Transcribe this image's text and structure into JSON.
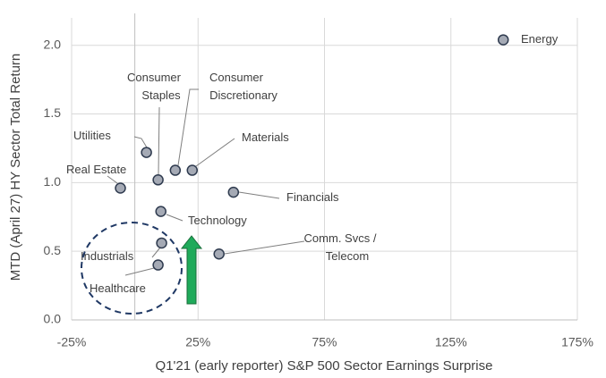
{
  "chart_data": {
    "type": "scatter",
    "x_label": "Q1'21 (early reporter) S&P 500 Sector Earnings Surprise",
    "y_label": "MTD (April 27) HY Sector Total Return",
    "xlim": [
      -25,
      175
    ],
    "xticks": [
      {
        "value": -25,
        "label": "-25%"
      },
      {
        "value": 25,
        "label": "25%"
      },
      {
        "value": 75,
        "label": "75%"
      },
      {
        "value": 125,
        "label": "125%"
      },
      {
        "value": 175,
        "label": "175%"
      }
    ],
    "ylim": [
      0,
      2.2
    ],
    "yticks": [
      {
        "value": 0,
        "label": "0.0"
      },
      {
        "value": 0.5,
        "label": "0.5"
      },
      {
        "value": 1,
        "label": "1.0"
      },
      {
        "value": 1.5,
        "label": "1.5"
      },
      {
        "value": 2,
        "label": "2.0"
      }
    ],
    "grid": true,
    "color": "#a5aab5",
    "points": [
      {
        "label": [
          "Energy"
        ],
        "x": 145.7,
        "y": 2.04
      },
      {
        "label": [
          "Utilities"
        ],
        "x": 4.6,
        "y": 1.22
      },
      {
        "label": [
          "Real Estate"
        ],
        "x": -5.7,
        "y": 0.96
      },
      {
        "label": [
          "Consumer",
          "Staples"
        ],
        "x": 9.2,
        "y": 1.02
      },
      {
        "label": [
          "Consumer",
          "Discretionary"
        ],
        "x": 16.0,
        "y": 1.09
      },
      {
        "label": [
          "Materials"
        ],
        "x": 22.7,
        "y": 1.09
      },
      {
        "label": [
          "Financials"
        ],
        "x": 39.0,
        "y": 0.93
      },
      {
        "label": [
          "Technology"
        ],
        "x": 10.3,
        "y": 0.79
      },
      {
        "label": [
          "Industrials"
        ],
        "x": 10.6,
        "y": 0.56
      },
      {
        "label": [
          "Healthcare"
        ],
        "x": 9.2,
        "y": 0.4
      },
      {
        "label": [
          "Comm. Svcs /",
          "Telecom"
        ],
        "x": 33.3,
        "y": 0.48
      }
    ]
  }
}
